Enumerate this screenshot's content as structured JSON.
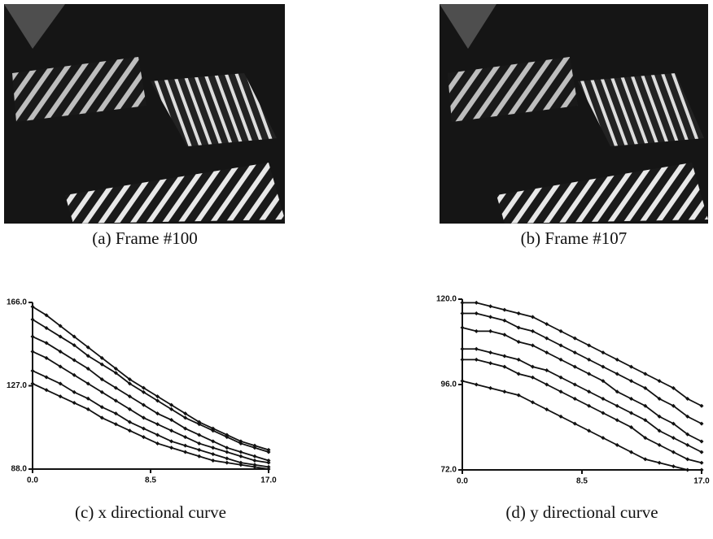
{
  "figures": [
    {
      "caption": "(a) Frame #100"
    },
    {
      "caption": "(b) Frame #107"
    }
  ],
  "chart_data": [
    {
      "type": "line",
      "caption": "(c) x directional curve",
      "color": "#111",
      "x": [
        0,
        1,
        2,
        3,
        4,
        5,
        6,
        7,
        8,
        9,
        10,
        11,
        12,
        13,
        14,
        15,
        16,
        17
      ],
      "xlim": [
        0,
        17
      ],
      "xticks": [
        {
          "value": 0,
          "label": "0.0"
        },
        8.5,
        {
          "value": 17,
          "label": "17.0"
        }
      ],
      "ylim": [
        88,
        166
      ],
      "yticks": [
        {
          "value": 88,
          "label": "88.0"
        },
        {
          "value": 127,
          "label": "127.0"
        },
        {
          "value": 166,
          "label": "166.0"
        }
      ],
      "series": [
        {
          "values": [
            164,
            160,
            155,
            150,
            145,
            140,
            135,
            130,
            126,
            122,
            118,
            114,
            110,
            107,
            104,
            101,
            99,
            97
          ]
        },
        {
          "values": [
            158,
            154,
            150,
            146,
            141,
            137,
            133,
            128,
            124,
            120,
            116,
            112,
            109,
            106,
            103,
            100,
            98,
            96
          ]
        },
        {
          "values": [
            150,
            147,
            143,
            139,
            135,
            130,
            126,
            122,
            118,
            114,
            111,
            107,
            104,
            101,
            98,
            96,
            94,
            92
          ]
        },
        {
          "values": [
            143,
            140,
            136,
            132,
            128,
            124,
            120,
            116,
            112,
            109,
            106,
            103,
            100,
            98,
            96,
            94,
            92,
            91
          ]
        },
        {
          "values": [
            134,
            131,
            128,
            124,
            121,
            117,
            114,
            110,
            107,
            104,
            101,
            99,
            97,
            95,
            93,
            91,
            90,
            89
          ]
        },
        {
          "values": [
            128,
            125,
            122,
            119,
            116,
            112,
            109,
            106,
            103,
            100,
            98,
            96,
            94,
            92,
            91,
            90,
            89,
            88
          ]
        }
      ]
    },
    {
      "type": "line",
      "caption": "(d) y directional curve",
      "color": "#111",
      "x": [
        0,
        1,
        2,
        3,
        4,
        5,
        6,
        7,
        8,
        9,
        10,
        11,
        12,
        13,
        14,
        15,
        16,
        17
      ],
      "xlim": [
        0,
        17
      ],
      "xticks": [
        {
          "value": 0,
          "label": "0.0"
        },
        8.5,
        {
          "value": 17,
          "label": "17.0"
        }
      ],
      "ylim": [
        72,
        120
      ],
      "yticks": [
        {
          "value": 72,
          "label": "72.0"
        },
        {
          "value": 96,
          "label": "96.0"
        },
        {
          "value": 120,
          "label": "120.0"
        }
      ],
      "series": [
        {
          "values": [
            119,
            119,
            118,
            117,
            116,
            115,
            113,
            111,
            109,
            107,
            105,
            103,
            101,
            99,
            97,
            95,
            92,
            90
          ]
        },
        {
          "values": [
            116,
            116,
            115,
            114,
            112,
            111,
            109,
            107,
            105,
            103,
            101,
            99,
            97,
            95,
            92,
            90,
            87,
            85
          ]
        },
        {
          "values": [
            112,
            111,
            111,
            110,
            108,
            107,
            105,
            103,
            101,
            99,
            97,
            94,
            92,
            90,
            87,
            85,
            82,
            80
          ]
        },
        {
          "values": [
            106,
            106,
            105,
            104,
            103,
            101,
            100,
            98,
            96,
            94,
            92,
            90,
            88,
            86,
            83,
            81,
            79,
            77
          ]
        },
        {
          "values": [
            103,
            103,
            102,
            101,
            99,
            98,
            96,
            94,
            92,
            90,
            88,
            86,
            84,
            81,
            79,
            77,
            75,
            74
          ]
        },
        {
          "values": [
            97,
            96,
            95,
            94,
            93,
            91,
            89,
            87,
            85,
            83,
            81,
            79,
            77,
            75,
            74,
            73,
            72,
            72
          ]
        }
      ]
    }
  ]
}
